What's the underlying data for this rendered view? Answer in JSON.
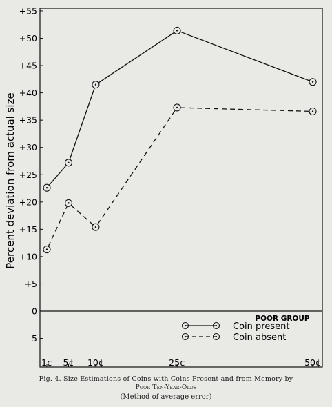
{
  "chart_data": {
    "type": "line",
    "title": "",
    "xlabel": "",
    "ylabel": "Percent deviation from actual size",
    "categories": [
      "1¢",
      "5¢",
      "10¢",
      "25¢",
      "50¢"
    ],
    "x_positions": [
      1,
      5,
      10,
      25,
      50
    ],
    "ylim": [
      -8,
      55
    ],
    "yticks": [
      55,
      50,
      45,
      40,
      35,
      30,
      25,
      20,
      15,
      10,
      5,
      0,
      -5
    ],
    "ytick_labels": [
      "+55",
      "+50",
      "+45",
      "+40",
      "+35",
      "+30",
      "+25",
      "+20",
      "+15",
      "+10",
      "+5",
      "0",
      "-5"
    ],
    "grid": false,
    "legend_title": "POOR GROUP",
    "legend_position": "bottom-right",
    "series": [
      {
        "name": "Coin present",
        "style": "solid",
        "values": [
          22.6,
          27.2,
          41.5,
          51.4,
          42.0
        ]
      },
      {
        "name": "Coin absent",
        "style": "dashed",
        "values": [
          11.3,
          19.8,
          15.4,
          37.3,
          36.6
        ]
      }
    ]
  },
  "caption": {
    "line1": "Fig. 4.   Size Estimations of Coins with Coins Present and from Memory by",
    "line2": "Poor Ten-Year-Olds",
    "line3": "(Method of average error)"
  }
}
